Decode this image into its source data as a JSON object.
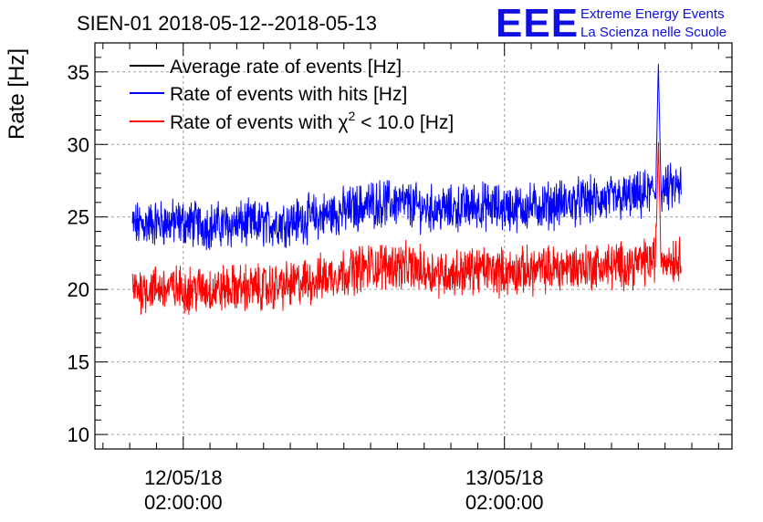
{
  "header": {
    "title": "SIEN-01 2018-05-12--2018-05-13",
    "logo_text": "EEE",
    "logo_line1": "Extreme Energy Events",
    "logo_line2": "La Scienza nelle Scuole"
  },
  "colors": {
    "average": "#000000",
    "hits": "#0000ff",
    "chi2": "#ff0000",
    "grid": "#a0a0a0",
    "logo": "#1010e0"
  },
  "legend": {
    "placement": "top-left",
    "items": [
      {
        "label": "Average rate of events [Hz]",
        "color": "#000000"
      },
      {
        "label": "Rate of events with hits [Hz]",
        "color": "#0000ff"
      },
      {
        "label_pre": "Rate of events with ",
        "label_chi": "χ",
        "label_sup": "2",
        "label_post": " < 10.0 [Hz]",
        "color": "#ff0000"
      }
    ]
  },
  "chart_data": {
    "type": "line",
    "title": "SIEN-01 2018-05-12--2018-05-13",
    "ylabel": "Rate [Hz]",
    "xlabel": "",
    "ylim": [
      9,
      37
    ],
    "grid": true,
    "y_ticks": [
      10,
      15,
      20,
      25,
      30,
      35
    ],
    "x_tick_labels": [
      {
        "date": "12/05/18",
        "time": "02:00:00",
        "hours": 2
      },
      {
        "date": "13/05/18",
        "time": "02:00:00",
        "hours": 26
      }
    ],
    "x_range_hours": [
      -4.6,
      43.0
    ],
    "data_range_hours": [
      -1.8,
      39.2
    ],
    "series": [
      {
        "name": "Rate of events with hits [Hz]",
        "color": "#0000ff",
        "x_hours": [
          -1.8,
          0,
          2,
          4,
          6,
          8,
          10,
          12,
          14,
          16,
          18,
          20,
          22,
          24,
          26,
          28,
          30,
          32,
          34,
          36,
          37.3,
          37.5,
          37.7,
          39.2
        ],
        "y": [
          24.4,
          24.6,
          24.6,
          24.4,
          24.5,
          24.5,
          24.7,
          25.0,
          25.4,
          25.9,
          26.0,
          25.6,
          25.5,
          25.8,
          25.6,
          25.7,
          25.9,
          26.1,
          26.2,
          26.4,
          26.8,
          35.6,
          26.9,
          27.1
        ]
      },
      {
        "name": "Rate of events with χ2 < 10.0 [Hz]",
        "color": "#ff0000",
        "x_hours": [
          -1.8,
          0,
          2,
          4,
          6,
          8,
          10,
          12,
          14,
          16,
          18,
          20,
          22,
          24,
          26,
          28,
          30,
          32,
          34,
          36,
          37.3,
          37.5,
          37.7,
          39.2
        ],
        "y": [
          20.0,
          20.1,
          20.0,
          20.0,
          20.1,
          20.1,
          20.3,
          20.7,
          21.2,
          21.6,
          21.7,
          21.3,
          21.1,
          21.4,
          21.2,
          21.3,
          21.5,
          21.6,
          21.6,
          21.8,
          22.1,
          30.2,
          22.2,
          22.1
        ]
      }
    ]
  }
}
